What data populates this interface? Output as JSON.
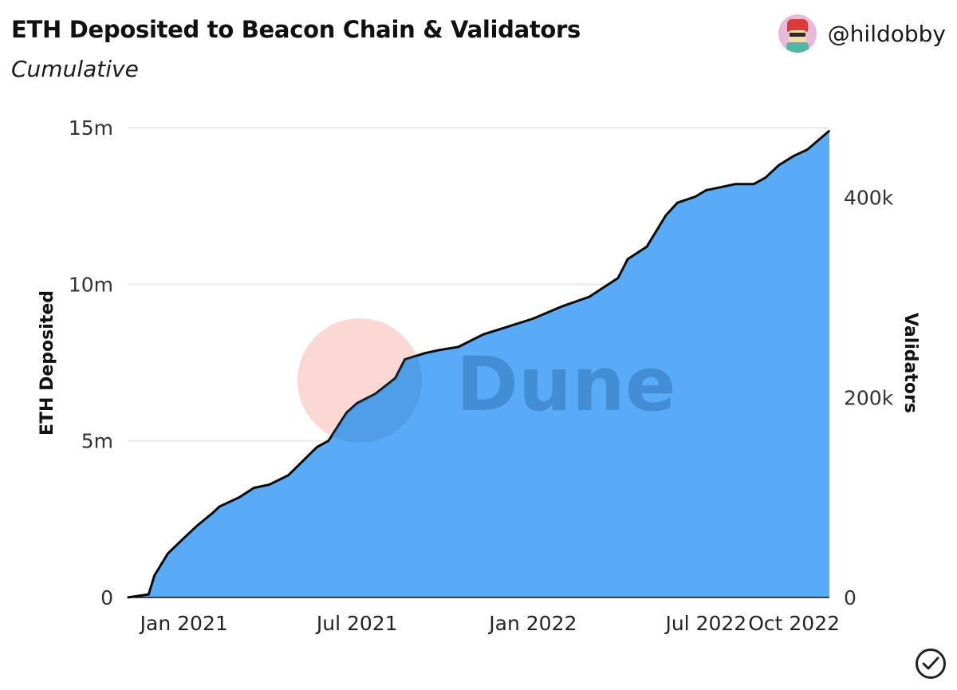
{
  "header": {
    "title": "ETH Deposited to Beacon Chain & Validators",
    "subtitle": "Cumulative",
    "author": "@hildobby"
  },
  "watermark": {
    "text": "Dune"
  },
  "icons": {
    "avatar": "avatar-icon",
    "check": "check-circle-icon"
  },
  "colors": {
    "area": "#5aabf7",
    "line": "#0b0b0b",
    "grid": "#e9e9e9",
    "watermark_circle": "#fbd8d4",
    "watermark_text": "#3a83c7"
  },
  "chart_data": {
    "type": "area",
    "xlabel": "",
    "ylabel": "ETH Deposited",
    "y2label": "Validators",
    "y_ticks": [
      "0",
      "5m",
      "10m",
      "15m"
    ],
    "y_tick_values": [
      0,
      5000000,
      10000000,
      15000000
    ],
    "y2_ticks": [
      "0",
      "200k",
      "400k"
    ],
    "y2_tick_values": [
      0,
      200000,
      400000
    ],
    "x_ticks": [
      "Jan 2021",
      "Jul 2021",
      "Jan 2022",
      "Jul 2022",
      "Oct 2022"
    ],
    "x_tick_dates": [
      "2021-01-01",
      "2021-07-01",
      "2022-01-01",
      "2022-07-01",
      "2022-10-01"
    ],
    "xlim": [
      "2020-11-03",
      "2022-11-07"
    ],
    "ylim": [
      0,
      15000000
    ],
    "y2lim": [
      0,
      470000
    ],
    "grid": true,
    "series": [
      {
        "x": [
          "2020-11-03",
          "2020-11-25",
          "2020-12-01",
          "2020-12-15",
          "2021-01-01",
          "2021-01-15",
          "2021-01-31",
          "2021-02-07",
          "2021-02-28",
          "2021-03-15",
          "2021-03-31",
          "2021-04-20",
          "2021-05-10",
          "2021-05-20",
          "2021-06-01",
          "2021-06-20",
          "2021-07-01",
          "2021-07-20",
          "2021-08-10",
          "2021-08-20",
          "2021-09-10",
          "2021-09-25",
          "2021-10-15",
          "2021-11-10",
          "2021-12-01",
          "2022-01-01",
          "2022-02-01",
          "2022-03-01",
          "2022-03-31",
          "2022-04-10",
          "2022-04-30",
          "2022-05-20",
          "2022-06-01",
          "2022-06-20",
          "2022-07-01",
          "2022-08-01",
          "2022-08-20",
          "2022-09-01",
          "2022-09-15",
          "2022-10-01",
          "2022-10-15",
          "2022-11-07"
        ],
        "y": [
          0,
          100000,
          700000,
          1400000,
          1900000,
          2300000,
          2700000,
          2900000,
          3200000,
          3500000,
          3600000,
          3900000,
          4500000,
          4800000,
          5000000,
          5900000,
          6200000,
          6500000,
          7000000,
          7600000,
          7800000,
          7900000,
          8000000,
          8400000,
          8600000,
          8900000,
          9300000,
          9600000,
          10200000,
          10800000,
          11200000,
          12200000,
          12600000,
          12800000,
          13000000,
          13200000,
          13200000,
          13400000,
          13800000,
          14100000,
          14300000,
          14900000
        ]
      }
    ]
  }
}
